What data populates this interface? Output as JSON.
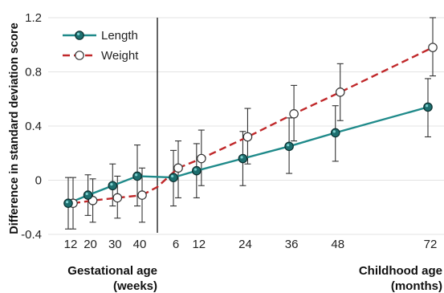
{
  "chart_data": {
    "type": "line",
    "ylabel": "Difference in standard deviation score",
    "ylim": [
      -0.4,
      1.2
    ],
    "yticks": [
      -0.4,
      0,
      0.4,
      0.8,
      1.2
    ],
    "ytick_labels": [
      "-0.4",
      "0",
      "0.4",
      "0.8",
      "1.2"
    ],
    "panels": [
      {
        "name": "gestational",
        "xlabel_line1": "Gestational age",
        "xlabel_line2": "(weeks)",
        "xticks": [
          12,
          20,
          30,
          40
        ],
        "xtick_labels": [
          "12",
          "20",
          "30",
          "40"
        ]
      },
      {
        "name": "childhood",
        "xlabel_line1": "Childhood age",
        "xlabel_line2": "(months)",
        "xticks": [
          6,
          12,
          24,
          36,
          48,
          72
        ],
        "xtick_labels": [
          "6",
          "12",
          "24",
          "36",
          "48",
          "72"
        ]
      }
    ],
    "legend": {
      "position": "top-left"
    },
    "series": [
      {
        "name": "Length",
        "color": "#1f8a8a",
        "line_style": "solid",
        "marker": "filled-teal",
        "points": [
          {
            "panel": "gestational",
            "x": 12,
            "y": -0.17,
            "lo": -0.36,
            "hi": 0.02
          },
          {
            "panel": "gestational",
            "x": 20,
            "y": -0.11,
            "lo": -0.26,
            "hi": 0.04
          },
          {
            "panel": "gestational",
            "x": 30,
            "y": -0.04,
            "lo": -0.19,
            "hi": 0.12
          },
          {
            "panel": "gestational",
            "x": 40,
            "y": 0.03,
            "lo": -0.19,
            "hi": 0.26
          },
          {
            "panel": "childhood",
            "x": 6,
            "y": 0.02,
            "lo": -0.19,
            "hi": 0.22
          },
          {
            "panel": "childhood",
            "x": 12,
            "y": 0.07,
            "lo": -0.13,
            "hi": 0.27
          },
          {
            "panel": "childhood",
            "x": 24,
            "y": 0.16,
            "lo": -0.04,
            "hi": 0.36
          },
          {
            "panel": "childhood",
            "x": 36,
            "y": 0.25,
            "lo": 0.05,
            "hi": 0.46
          },
          {
            "panel": "childhood",
            "x": 48,
            "y": 0.35,
            "lo": 0.14,
            "hi": 0.55
          },
          {
            "panel": "childhood",
            "x": 72,
            "y": 0.54,
            "lo": 0.32,
            "hi": 0.75
          }
        ],
        "extra_segments": [
          {
            "from": {
              "panel": "gestational",
              "x": 40,
              "y": 0.03
            },
            "to": {
              "panel": "childhood",
              "x": 6,
              "y": 0.02
            }
          }
        ]
      },
      {
        "name": "Weight",
        "color": "#c0282a",
        "line_style": "dashed",
        "marker": "open-white",
        "points": [
          {
            "panel": "gestational",
            "x": 12,
            "y": -0.17,
            "lo": -0.36,
            "hi": 0.02
          },
          {
            "panel": "gestational",
            "x": 20,
            "y": -0.15,
            "lo": -0.31,
            "hi": 0.01
          },
          {
            "panel": "gestational",
            "x": 30,
            "y": -0.13,
            "lo": -0.28,
            "hi": 0.03
          },
          {
            "panel": "gestational",
            "x": 40,
            "y": -0.11,
            "lo": -0.31,
            "hi": 0.09
          },
          {
            "panel": "childhood",
            "x": 6,
            "y": 0.09,
            "lo": -0.13,
            "hi": 0.29
          },
          {
            "panel": "childhood",
            "x": 12,
            "y": 0.16,
            "lo": -0.04,
            "hi": 0.37
          },
          {
            "panel": "childhood",
            "x": 24,
            "y": 0.32,
            "lo": 0.12,
            "hi": 0.53
          },
          {
            "panel": "childhood",
            "x": 36,
            "y": 0.49,
            "lo": 0.29,
            "hi": 0.7
          },
          {
            "panel": "childhood",
            "x": 48,
            "y": 0.65,
            "lo": 0.44,
            "hi": 0.86
          },
          {
            "panel": "childhood",
            "x": 72,
            "y": 0.98,
            "lo": 0.77,
            "hi": 1.2
          }
        ],
        "bridge": {
          "from": {
            "panel": "gestational",
            "x": 40,
            "y": -0.11
          },
          "via_y": -0.05,
          "to": {
            "panel": "childhood",
            "x": 6,
            "y": 0.09
          }
        }
      }
    ]
  }
}
